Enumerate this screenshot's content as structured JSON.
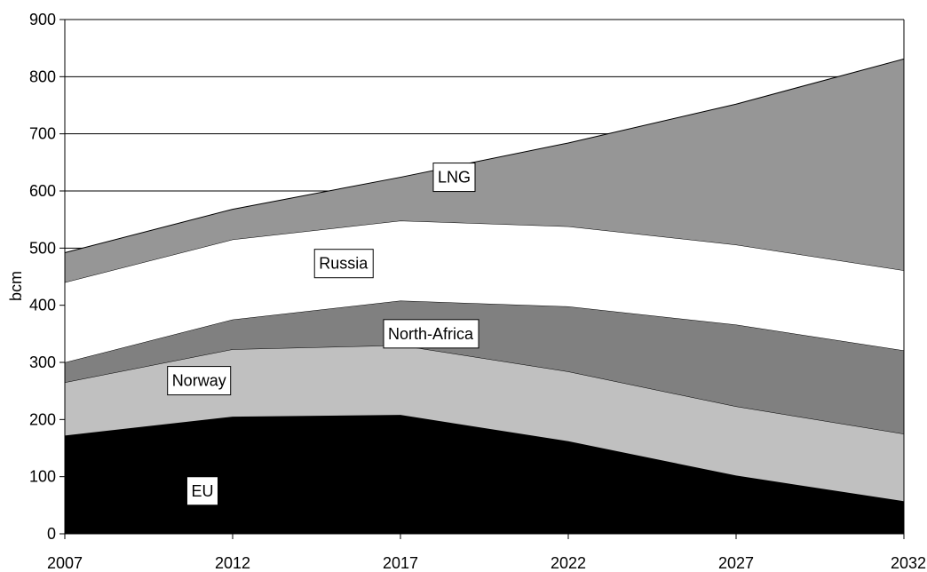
{
  "chart_data": {
    "type": "area",
    "stacked": true,
    "title": "",
    "xlabel": "",
    "ylabel": "bcm",
    "x": [
      2007,
      2012,
      2017,
      2022,
      2027,
      2032
    ],
    "xlim": [
      2007,
      2032
    ],
    "ylim": [
      0,
      900
    ],
    "yticks": [
      0,
      100,
      200,
      300,
      400,
      500,
      600,
      700,
      800,
      900
    ],
    "grid": "horizontal",
    "legend": "none",
    "series": [
      {
        "name": "EU",
        "values": [
          172,
          205,
          208,
          162,
          102,
          57
        ],
        "color": "#000000"
      },
      {
        "name": "Norway",
        "values": [
          93,
          118,
          122,
          122,
          121,
          118
        ],
        "color": "#c0c0c0"
      },
      {
        "name": "North-Africa",
        "values": [
          35,
          52,
          78,
          114,
          143,
          146
        ],
        "color": "#808080"
      },
      {
        "name": "Russia",
        "values": [
          140,
          140,
          140,
          140,
          140,
          140
        ],
        "color": "#ffffff"
      },
      {
        "name": "LNG",
        "values": [
          52,
          53,
          76,
          146,
          246,
          370
        ],
        "color": "#969696"
      }
    ],
    "series_labels": [
      {
        "series": "LNG",
        "x": 2018.6,
        "y": 624
      },
      {
        "series": "Russia",
        "x": 2015.3,
        "y": 473
      },
      {
        "series": "North-Africa",
        "x": 2017.9,
        "y": 350
      },
      {
        "series": "Norway",
        "x": 2011.0,
        "y": 268
      },
      {
        "series": "EU",
        "x": 2011.1,
        "y": 75
      }
    ]
  }
}
